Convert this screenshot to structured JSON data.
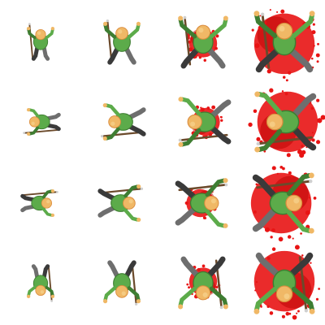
{
  "sprite_sheet": {
    "columns": 4,
    "rows": 4,
    "background": "#ffffff",
    "character": {
      "skin": "#f0b866",
      "skin_shade": "#d98a3c",
      "shirt": "#5cab4a",
      "shirt_shade": "#3e7d32",
      "pants": "#6e6e6e",
      "pants_shade": "#3a3a3a",
      "weapon": "#6b4a2b",
      "weapon_tip": "#cfcfcf"
    },
    "blood": "#e81414",
    "blood_shade": "#b80000",
    "rows_meta": [
      {
        "name": "direction-north-facing",
        "rotation": 0
      },
      {
        "name": "direction-west-facing",
        "rotation": -90
      },
      {
        "name": "direction-east-facing",
        "rotation": 90
      },
      {
        "name": "direction-south-facing",
        "rotation": 180
      }
    ],
    "frames_meta": [
      {
        "name": "frame-1-alive",
        "pose": 0,
        "blood": 0
      },
      {
        "name": "frame-2-hit",
        "pose": 1,
        "blood": 1
      },
      {
        "name": "frame-3-falling",
        "pose": 2,
        "blood": 2
      },
      {
        "name": "frame-4-dead",
        "pose": 3,
        "blood": 3
      }
    ]
  }
}
